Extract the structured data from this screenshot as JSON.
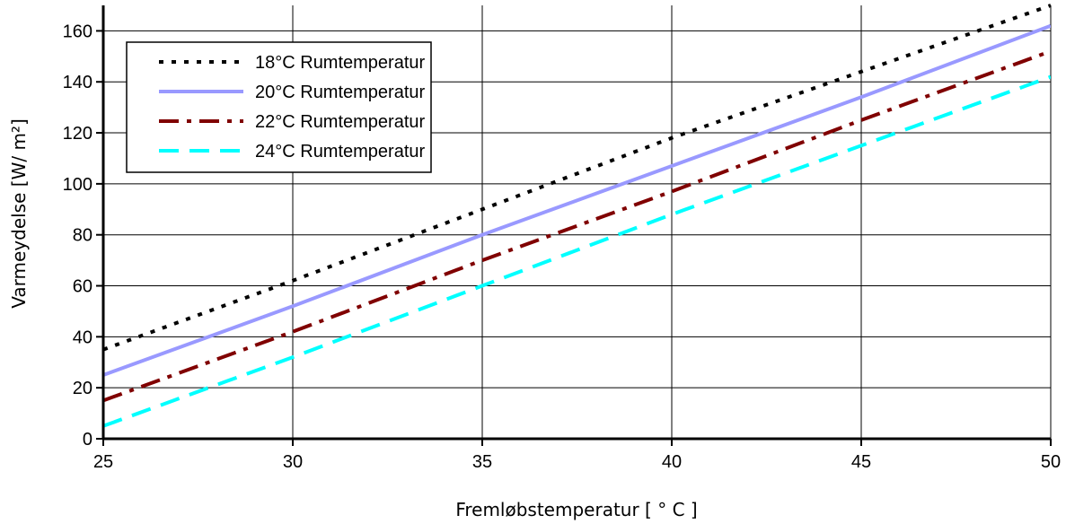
{
  "chart_data": {
    "type": "line",
    "title": "",
    "xlabel": "Fremløbstemperatur [ ° C ]",
    "ylabel": "Varmeydelse [W/ m²]",
    "xlim": [
      25,
      50
    ],
    "ylim": [
      0,
      170
    ],
    "xticks": [
      25,
      30,
      35,
      40,
      45,
      50
    ],
    "yticks": [
      0,
      20,
      40,
      60,
      80,
      100,
      120,
      140,
      160
    ],
    "grid": true,
    "legend_position": "top-left",
    "series": [
      {
        "name": "18°C Rumtemperatur",
        "color": "#000000",
        "style": "dotted",
        "x": [
          25,
          30,
          35,
          40,
          45,
          50
        ],
        "y": [
          35,
          62,
          90,
          118,
          144,
          170
        ]
      },
      {
        "name": "20°C Rumtemperatur",
        "color": "#9999FF",
        "style": "solid",
        "x": [
          25,
          30,
          35,
          40,
          45,
          50
        ],
        "y": [
          25,
          52,
          80,
          107,
          134,
          162
        ]
      },
      {
        "name": "22°C Rumtemperatur",
        "color": "#800000",
        "style": "dash-dot",
        "x": [
          25,
          30,
          35,
          40,
          45,
          50
        ],
        "y": [
          15,
          42,
          70,
          97,
          125,
          152
        ]
      },
      {
        "name": "24°C Rumtemperatur",
        "color": "#00FFFF",
        "style": "dashed",
        "x": [
          25,
          30,
          35,
          40,
          45,
          50
        ],
        "y": [
          5,
          32,
          60,
          88,
          115,
          142
        ]
      }
    ]
  }
}
